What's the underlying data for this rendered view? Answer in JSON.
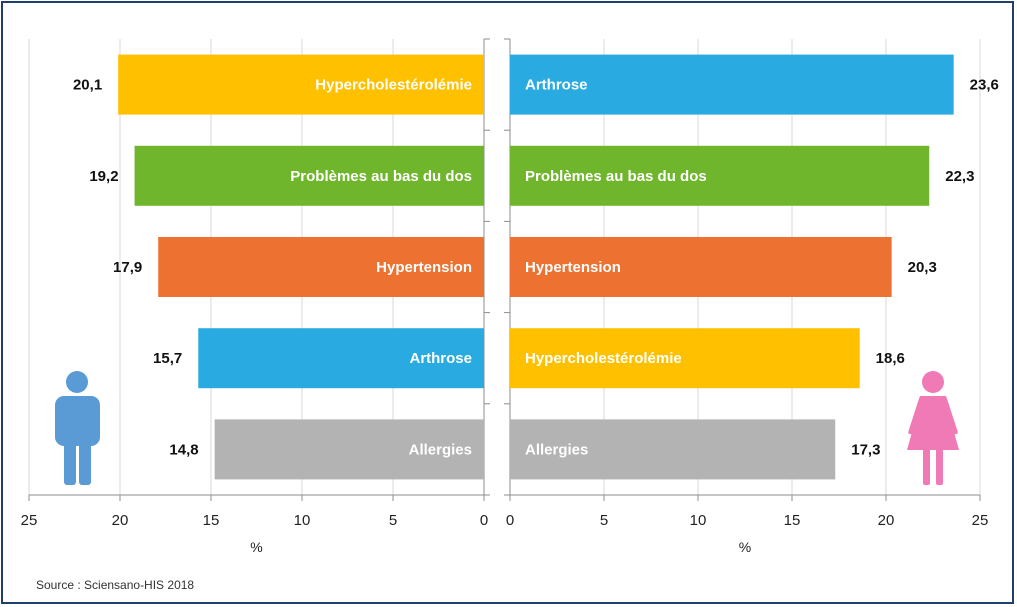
{
  "source": "Source : Sciensano-HIS 2018",
  "icons": {
    "left": "man-icon",
    "right": "woman-icon",
    "man_color": "#5b9bd5",
    "woman_color": "#f07ab6"
  },
  "chart_data": [
    {
      "type": "bar",
      "orientation": "horizontal",
      "direction": "reversed",
      "panel": "left",
      "categories": [
        "Hypercholestérolémie",
        "Problèmes au bas du dos",
        "Hypertension",
        "Arthrose",
        "Allergies"
      ],
      "values": [
        20.1,
        19.2,
        17.9,
        15.7,
        14.8
      ],
      "value_labels": [
        "20,1",
        "19,2",
        "17,9",
        "15,7",
        "14,8"
      ],
      "colors": [
        "#ffc000",
        "#70b62c",
        "#ed7130",
        "#29abe2",
        "#b3b3b3"
      ],
      "xlabel": "%",
      "xlim": [
        0,
        25
      ],
      "xticks": [
        "25",
        "20",
        "15",
        "10",
        "5",
        "0"
      ],
      "grid": true
    },
    {
      "type": "bar",
      "orientation": "horizontal",
      "panel": "right",
      "categories": [
        "Arthrose",
        "Problèmes au bas du dos",
        "Hypertension",
        "Hypercholestérolémie",
        "Allergies"
      ],
      "values": [
        23.6,
        22.3,
        20.3,
        18.6,
        17.3
      ],
      "value_labels": [
        "23,6",
        "22,3",
        "20,3",
        "18,6",
        "17,3"
      ],
      "colors": [
        "#29abe2",
        "#70b62c",
        "#ed7130",
        "#ffc000",
        "#b3b3b3"
      ],
      "xlabel": "%",
      "xlim": [
        0,
        25
      ],
      "xticks": [
        "0",
        "5",
        "10",
        "15",
        "20",
        "25"
      ],
      "grid": true
    }
  ]
}
